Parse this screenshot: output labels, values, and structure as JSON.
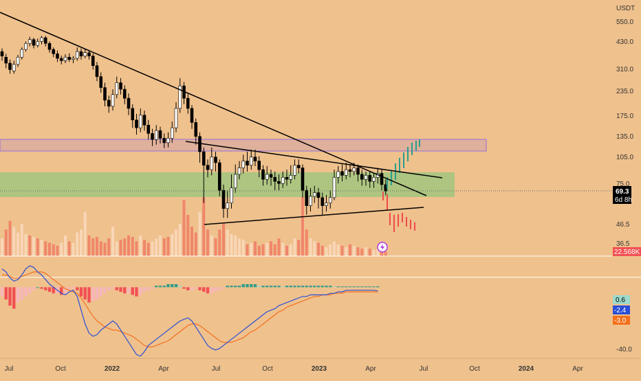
{
  "currency": "USDT",
  "price_axis": {
    "labels": [
      "550.0",
      "430.0",
      "310.0",
      "235.0",
      "175.0",
      "135.0",
      "105.0",
      "75.0",
      "46.5",
      "36.5"
    ],
    "last_price": "69.3",
    "countdown": "6d 8h",
    "volume_badge": "22.568K"
  },
  "macd_axis": {
    "labels": [
      "-40.0"
    ],
    "badges": [
      "0.6",
      "-2.4",
      "-3.0"
    ]
  },
  "time_axis": {
    "labels": [
      {
        "text": "Jul",
        "bold": false
      },
      {
        "text": "Oct",
        "bold": false
      },
      {
        "text": "2022",
        "bold": true
      },
      {
        "text": "Apr",
        "bold": false
      },
      {
        "text": "Jul",
        "bold": false
      },
      {
        "text": "Oct",
        "bold": false
      },
      {
        "text": "2023",
        "bold": true
      },
      {
        "text": "Apr",
        "bold": false
      },
      {
        "text": "Jul",
        "bold": false
      },
      {
        "text": "Oct",
        "bold": false
      },
      {
        "text": "2024",
        "bold": true
      },
      {
        "text": "Apr",
        "bold": false
      }
    ]
  },
  "colors": {
    "background": "#EFC18D",
    "up": "#FFFFFF",
    "down": "#000000",
    "volume_up": "#F9D6B7",
    "volume_down": "#F0866B",
    "macd_line": "#2A4FD6",
    "signal_line": "#F3701C",
    "hist_pos": "#2E9E8A",
    "hist_pos_light": "#9DD9CC",
    "hist_neg": "#F25054",
    "hist_neg_light": "#F7B6BA",
    "zone_green": "#A6C57F",
    "zone_purple": "#D9A9A0",
    "projection_up": "#2A9E8B",
    "projection_down": "#F04A4C"
  },
  "chart_data": {
    "type": "candlestick",
    "symbol_quote": "USDT",
    "scale": "log",
    "price_range": [
      36.5,
      550.0
    ],
    "candles": [
      [
        380,
        360,
        395,
        340
      ],
      [
        355,
        330,
        370,
        310
      ],
      [
        330,
        305,
        345,
        290
      ],
      [
        300,
        325,
        340,
        290
      ],
      [
        325,
        355,
        365,
        315
      ],
      [
        355,
        390,
        400,
        345
      ],
      [
        390,
        420,
        430,
        380
      ],
      [
        420,
        440,
        455,
        405
      ],
      [
        440,
        410,
        450,
        395
      ],
      [
        410,
        430,
        445,
        400
      ],
      [
        430,
        450,
        460,
        415
      ],
      [
        450,
        420,
        460,
        405
      ],
      [
        420,
        390,
        430,
        375
      ],
      [
        390,
        370,
        400,
        355
      ],
      [
        370,
        350,
        385,
        335
      ],
      [
        350,
        340,
        362,
        325
      ],
      [
        340,
        355,
        368,
        330
      ],
      [
        355,
        345,
        372,
        335
      ],
      [
        345,
        350,
        360,
        330
      ],
      [
        350,
        380,
        400,
        340
      ],
      [
        380,
        360,
        395,
        345
      ],
      [
        360,
        375,
        390,
        350
      ],
      [
        375,
        360,
        388,
        345
      ],
      [
        360,
        320,
        372,
        305
      ],
      [
        320,
        280,
        335,
        265
      ],
      [
        280,
        245,
        295,
        230
      ],
      [
        245,
        210,
        260,
        195
      ],
      [
        210,
        195,
        222,
        180
      ],
      [
        195,
        225,
        240,
        185
      ],
      [
        225,
        260,
        280,
        215
      ],
      [
        260,
        240,
        275,
        225
      ],
      [
        240,
        215,
        252,
        200
      ],
      [
        215,
        190,
        228,
        175
      ],
      [
        190,
        165,
        200,
        150
      ],
      [
        165,
        150,
        178,
        138
      ],
      [
        150,
        175,
        190,
        142
      ],
      [
        175,
        155,
        185,
        145
      ],
      [
        155,
        140,
        165,
        130
      ],
      [
        140,
        130,
        148,
        120
      ],
      [
        130,
        145,
        155,
        122
      ],
      [
        145,
        132,
        152,
        124
      ],
      [
        132,
        125,
        140,
        117
      ],
      [
        125,
        132,
        142,
        118
      ],
      [
        132,
        150,
        162,
        125
      ],
      [
        150,
        190,
        205,
        142
      ],
      [
        190,
        250,
        275,
        180
      ],
      [
        250,
        215,
        262,
        200
      ],
      [
        215,
        190,
        228,
        178
      ],
      [
        190,
        160,
        198,
        148
      ],
      [
        160,
        135,
        168,
        122
      ],
      [
        135,
        112,
        142,
        98
      ],
      [
        112,
        95,
        118,
        60
      ],
      [
        95,
        90,
        102,
        82
      ],
      [
        90,
        105,
        118,
        84
      ],
      [
        105,
        98,
        112,
        88
      ],
      [
        98,
        70,
        102,
        65
      ],
      [
        70,
        56,
        75,
        50
      ],
      [
        56,
        60,
        70,
        50
      ],
      [
        60,
        72,
        85,
        56
      ],
      [
        72,
        85,
        96,
        68
      ],
      [
        85,
        92,
        100,
        80
      ],
      [
        92,
        100,
        108,
        86
      ],
      [
        100,
        95,
        112,
        88
      ],
      [
        95,
        105,
        115,
        90
      ],
      [
        105,
        100,
        115,
        94
      ],
      [
        100,
        90,
        106,
        82
      ],
      [
        90,
        80,
        95,
        74
      ],
      [
        80,
        85,
        94,
        75
      ],
      [
        85,
        82,
        90,
        74
      ],
      [
        82,
        78,
        88,
        70
      ],
      [
        78,
        76,
        85,
        70
      ],
      [
        76,
        82,
        88,
        72
      ],
      [
        82,
        80,
        90,
        74
      ],
      [
        80,
        84,
        95,
        76
      ],
      [
        84,
        95,
        102,
        80
      ],
      [
        95,
        92,
        102,
        86
      ],
      [
        92,
        70,
        96,
        64
      ],
      [
        70,
        58,
        74,
        52
      ],
      [
        58,
        65,
        72,
        54
      ],
      [
        65,
        68,
        74,
        60
      ],
      [
        68,
        64,
        72,
        56
      ],
      [
        64,
        58,
        68,
        52
      ],
      [
        58,
        60,
        66,
        54
      ],
      [
        60,
        64,
        70,
        56
      ],
      [
        64,
        82,
        90,
        62
      ],
      [
        82,
        88,
        94,
        76
      ],
      [
        88,
        84,
        96,
        78
      ],
      [
        84,
        90,
        98,
        80
      ],
      [
        90,
        88,
        96,
        82
      ],
      [
        88,
        92,
        98,
        84
      ],
      [
        92,
        85,
        96,
        78
      ],
      [
        85,
        80,
        90,
        74
      ],
      [
        80,
        84,
        88,
        74
      ],
      [
        84,
        78,
        88,
        72
      ],
      [
        78,
        82,
        86,
        72
      ],
      [
        82,
        86,
        92,
        76
      ],
      [
        86,
        75,
        90,
        70
      ],
      [
        75,
        69.3,
        80,
        66
      ]
    ],
    "volume": [
      {
        "v": 12,
        "up": true
      },
      {
        "v": 18,
        "up": false
      },
      {
        "v": 24,
        "up": false
      },
      {
        "v": 20,
        "up": true
      },
      {
        "v": 16,
        "up": true
      },
      {
        "v": 22,
        "up": true
      },
      {
        "v": 15,
        "up": true
      },
      {
        "v": 14,
        "up": false
      },
      {
        "v": 13,
        "up": true
      },
      {
        "v": 12,
        "up": false
      },
      {
        "v": 11,
        "up": true
      },
      {
        "v": 10,
        "up": false
      },
      {
        "v": 9,
        "up": false
      },
      {
        "v": 8,
        "up": false
      },
      {
        "v": 7,
        "up": false
      },
      {
        "v": 9,
        "up": true
      },
      {
        "v": 14,
        "up": true
      },
      {
        "v": 10,
        "up": false
      },
      {
        "v": 9,
        "up": true
      },
      {
        "v": 16,
        "up": true
      },
      {
        "v": 18,
        "up": true
      },
      {
        "v": 30,
        "up": true
      },
      {
        "v": 14,
        "up": false
      },
      {
        "v": 12,
        "up": false
      },
      {
        "v": 13,
        "up": false
      },
      {
        "v": 10,
        "up": false
      },
      {
        "v": 9,
        "up": false
      },
      {
        "v": 12,
        "up": false
      },
      {
        "v": 20,
        "up": true
      },
      {
        "v": 10,
        "up": true
      },
      {
        "v": 11,
        "up": false
      },
      {
        "v": 12,
        "up": false
      },
      {
        "v": 14,
        "up": false
      },
      {
        "v": 13,
        "up": false
      },
      {
        "v": 10,
        "up": false
      },
      {
        "v": 14,
        "up": true
      },
      {
        "v": 11,
        "up": false
      },
      {
        "v": 9,
        "up": false
      },
      {
        "v": 10,
        "up": true
      },
      {
        "v": 12,
        "up": true
      },
      {
        "v": 14,
        "up": true
      },
      {
        "v": 12,
        "up": false
      },
      {
        "v": 13,
        "up": false
      },
      {
        "v": 15,
        "up": true
      },
      {
        "v": 18,
        "up": true
      },
      {
        "v": 22,
        "up": true
      },
      {
        "v": 38,
        "up": false
      },
      {
        "v": 28,
        "up": false
      },
      {
        "v": 20,
        "up": false
      },
      {
        "v": 16,
        "up": false
      },
      {
        "v": 30,
        "up": true
      },
      {
        "v": 40,
        "up": false
      },
      {
        "v": 18,
        "up": false
      },
      {
        "v": 14,
        "up": true
      },
      {
        "v": 12,
        "up": false
      },
      {
        "v": 18,
        "up": false
      },
      {
        "v": 22,
        "up": false
      },
      {
        "v": 18,
        "up": true
      },
      {
        "v": 15,
        "up": true
      },
      {
        "v": 14,
        "up": true
      },
      {
        "v": 12,
        "up": true
      },
      {
        "v": 11,
        "up": true
      },
      {
        "v": 8,
        "up": false
      },
      {
        "v": 9,
        "up": true
      },
      {
        "v": 10,
        "up": false
      },
      {
        "v": 7,
        "up": false
      },
      {
        "v": 8,
        "up": false
      },
      {
        "v": 9,
        "up": true
      },
      {
        "v": 10,
        "up": false
      },
      {
        "v": 8,
        "up": false
      },
      {
        "v": 12,
        "up": false
      },
      {
        "v": 9,
        "up": true
      },
      {
        "v": 7,
        "up": false
      },
      {
        "v": 8,
        "up": true
      },
      {
        "v": 12,
        "up": true
      },
      {
        "v": 11,
        "up": false
      },
      {
        "v": 40,
        "up": false
      },
      {
        "v": 18,
        "up": false
      },
      {
        "v": 12,
        "up": true
      },
      {
        "v": 10,
        "up": true
      },
      {
        "v": 9,
        "up": false
      },
      {
        "v": 7,
        "up": false
      },
      {
        "v": 6,
        "up": true
      },
      {
        "v": 8,
        "up": true
      },
      {
        "v": 10,
        "up": true
      },
      {
        "v": 8,
        "up": true
      },
      {
        "v": 7,
        "up": false
      },
      {
        "v": 6,
        "up": true
      },
      {
        "v": 8,
        "up": false
      },
      {
        "v": 7,
        "up": true
      },
      {
        "v": 6,
        "up": false
      },
      {
        "v": 5,
        "up": false
      },
      {
        "v": 6,
        "up": true
      },
      {
        "v": 5,
        "up": false
      },
      {
        "v": 4,
        "up": true
      },
      {
        "v": 5,
        "up": true
      },
      {
        "v": 4,
        "up": false
      },
      {
        "v": 3,
        "up": false
      }
    ],
    "macd": {
      "range": [
        -46,
        6
      ],
      "macd_line": [
        12,
        10,
        6,
        4,
        5,
        8,
        12,
        14,
        13,
        10,
        8,
        5,
        2,
        0,
        -2,
        -4,
        -5,
        -3,
        -2,
        -6,
        -15,
        -24,
        -30,
        -32,
        -31,
        -28,
        -26,
        -24,
        -22,
        -24,
        -28,
        -32,
        -36,
        -40,
        -44,
        -45,
        -42,
        -38,
        -36,
        -34,
        -32,
        -30,
        -28,
        -26,
        -24,
        -22,
        -21,
        -20,
        -22,
        -26,
        -30,
        -34,
        -38,
        -40,
        -41,
        -40,
        -38,
        -36,
        -34,
        -32,
        -30,
        -28,
        -26,
        -24,
        -22,
        -20,
        -18,
        -16,
        -15,
        -14,
        -12,
        -11,
        -10,
        -9,
        -8,
        -7,
        -6,
        -6,
        -5,
        -5,
        -5,
        -5,
        -5,
        -4,
        -4,
        -3,
        -3,
        -2,
        -2,
        -2,
        -2,
        -2,
        -2,
        -2,
        -2,
        -2.4
      ],
      "signal_line": [
        8,
        8,
        7,
        6,
        6,
        7,
        8,
        9,
        10,
        10,
        10,
        9,
        7,
        5,
        3,
        1,
        -1,
        -2,
        -3,
        -4,
        -7,
        -11,
        -15,
        -19,
        -22,
        -24,
        -26,
        -27,
        -28,
        -28,
        -29,
        -30,
        -31,
        -32,
        -34,
        -36,
        -38,
        -39,
        -39,
        -38,
        -37,
        -36,
        -35,
        -33,
        -31,
        -29,
        -27,
        -25,
        -24,
        -24,
        -25,
        -27,
        -29,
        -31,
        -33,
        -35,
        -36,
        -36,
        -36,
        -35,
        -34,
        -33,
        -31,
        -29,
        -28,
        -26,
        -24,
        -22,
        -20,
        -18,
        -16,
        -15,
        -13,
        -12,
        -11,
        -10,
        -9,
        -8,
        -7,
        -6,
        -6,
        -5,
        -5,
        -5,
        -4,
        -4,
        -4,
        -3,
        -3,
        -3,
        -3,
        -3,
        -3,
        -3,
        -3,
        -3.0
      ],
      "histogram": [
        -6,
        -8,
        -12,
        -14,
        -10,
        -8,
        -6,
        -4,
        -2,
        0,
        -1,
        -2,
        -3,
        -4,
        -4,
        -5,
        -4,
        -2,
        -1,
        -2,
        -6,
        -8,
        -10,
        -9,
        -8,
        -6,
        -4,
        -2,
        -1,
        -2,
        -3,
        -4,
        -4,
        -5,
        -6,
        -5,
        -3,
        -2,
        -1,
        1,
        1,
        1,
        2,
        2,
        2,
        1,
        -1,
        -2,
        -2,
        -1,
        -2,
        -3,
        -4,
        -4,
        -3,
        -2,
        -1,
        1,
        1,
        1,
        1,
        2,
        2,
        2,
        2,
        1,
        1,
        1,
        1,
        1,
        1,
        0.5,
        1,
        1,
        1,
        1,
        1,
        1,
        1,
        1,
        1,
        1,
        1,
        1,
        0.5,
        0.5,
        0.5,
        0.5,
        0.5,
        0.5,
        0.5,
        0.5,
        0.5,
        0.5,
        0.5,
        0.6
      ]
    }
  }
}
